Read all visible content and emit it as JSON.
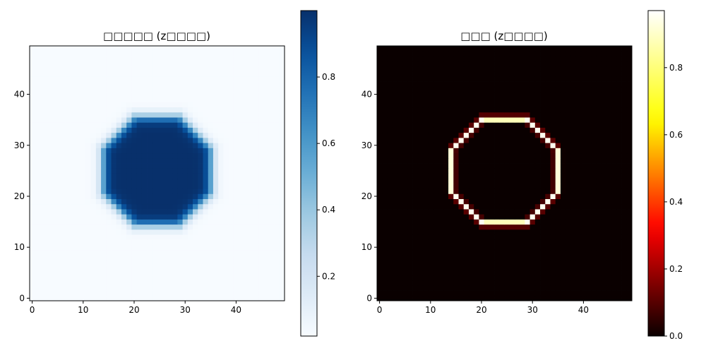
{
  "chart_data": [
    {
      "type": "heatmap",
      "title": "□□□□□ (z□□□□)",
      "colormap": "Blues",
      "colormap_stops": [
        "#f7fbff",
        "#deebf7",
        "#c6dbef",
        "#9ecae1",
        "#6baed6",
        "#4292c6",
        "#2171b5",
        "#08519c",
        "#08306b"
      ],
      "grid_size": [
        50,
        50
      ],
      "origin": "lower",
      "xlim": [
        -0.5,
        49.5
      ],
      "ylim": [
        -0.5,
        49.5
      ],
      "x_ticks": [
        0,
        10,
        20,
        30,
        40
      ],
      "y_ticks": [
        0,
        10,
        20,
        30,
        40
      ],
      "shape": {
        "kind": "filled-octagon",
        "center": [
          24.5,
          25
        ],
        "radius": 11.5,
        "smoothing": 1.2
      },
      "value_range": [
        0.02,
        1.0
      ],
      "colorbar": {
        "ticks": [
          0.2,
          0.4,
          0.6,
          0.8
        ],
        "range": [
          0.02,
          1.0
        ]
      }
    },
    {
      "type": "heatmap",
      "title": "□□□ (z□□□□)",
      "colormap": "hot",
      "colormap_stops": [
        "#0a0000",
        "#ff0000",
        "#ffff00",
        "#ffffff"
      ],
      "grid_size": [
        50,
        50
      ],
      "origin": "lower",
      "xlim": [
        -0.5,
        49.5
      ],
      "ylim": [
        -0.5,
        49.5
      ],
      "x_ticks": [
        0,
        10,
        20,
        30,
        40
      ],
      "y_ticks": [
        0,
        10,
        20,
        30,
        40
      ],
      "shape": {
        "kind": "octagon-ring",
        "center": [
          24.5,
          25
        ],
        "radius": 11.5
      },
      "value_range": [
        0.0,
        0.97
      ],
      "colorbar": {
        "ticks": [
          0.0,
          0.2,
          0.4,
          0.6,
          0.8
        ],
        "range": [
          0.0,
          0.97
        ]
      }
    }
  ]
}
